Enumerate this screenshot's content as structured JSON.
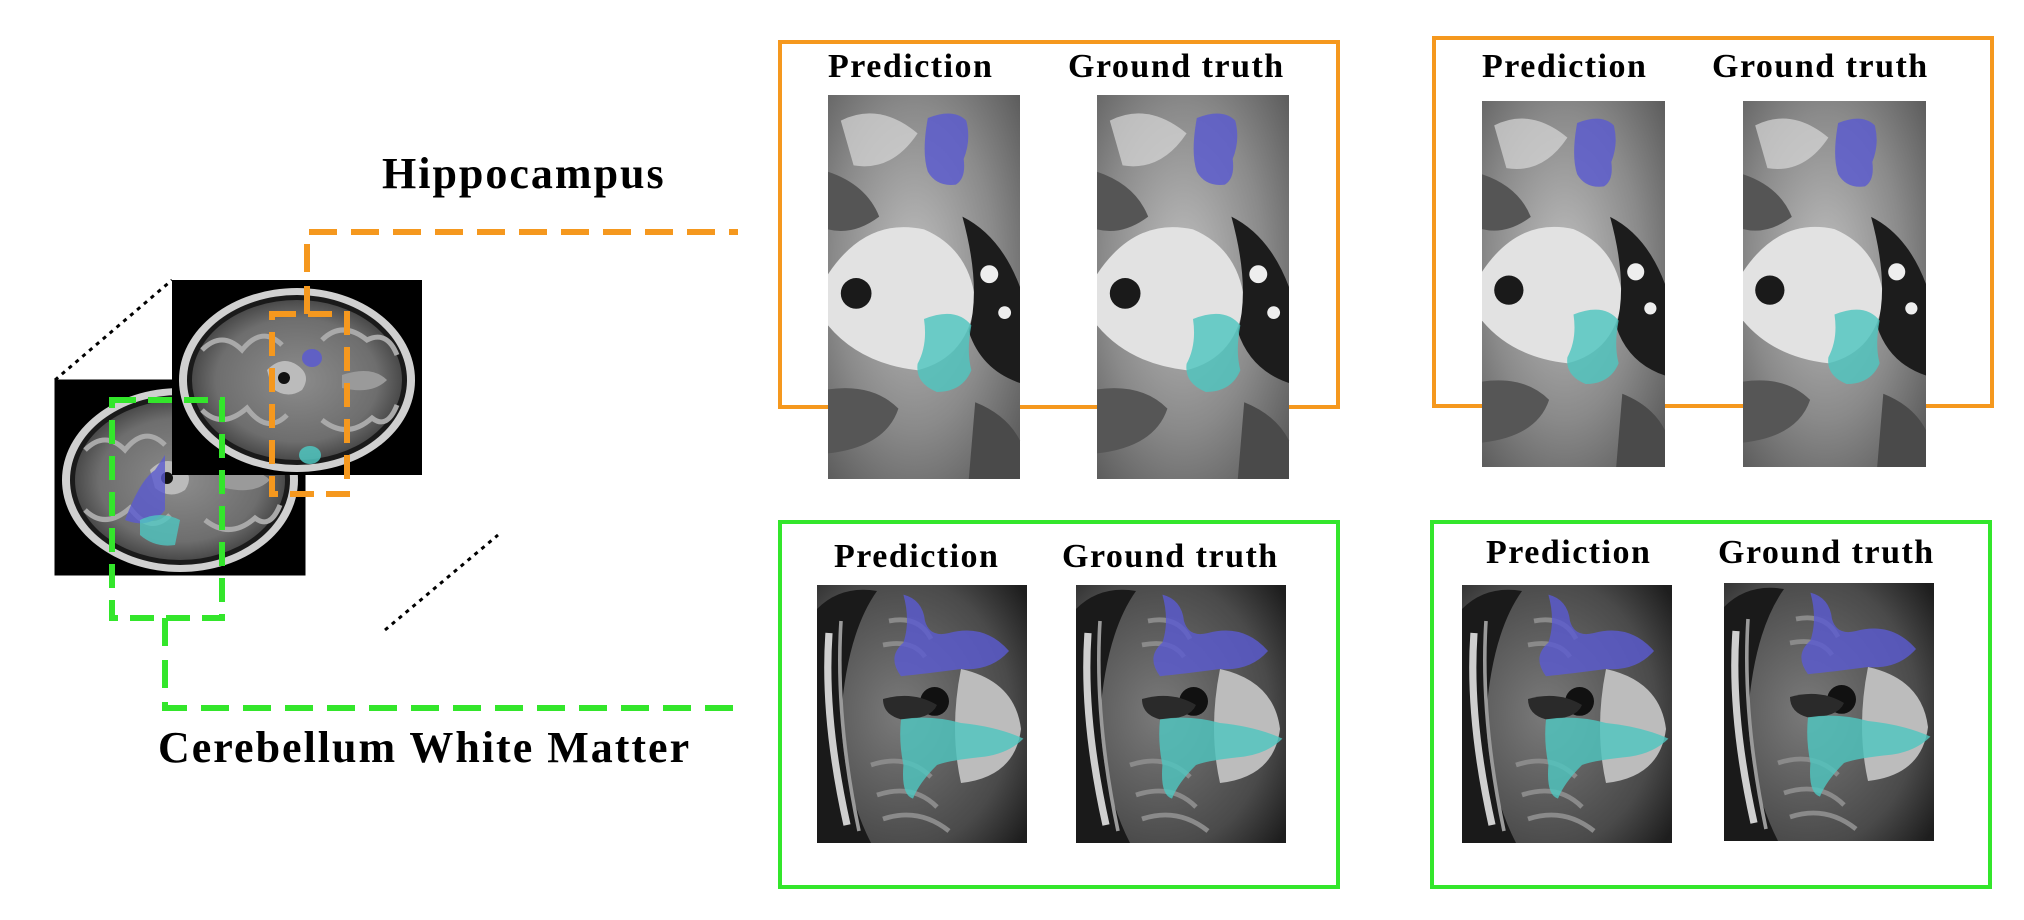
{
  "regions": {
    "hippocampus": "Hippocampus",
    "cerebellum": "Cerebellum White Matter"
  },
  "panel_headers": {
    "prediction": "Prediction",
    "ground_truth": "Ground truth"
  },
  "colors": {
    "hippocampus_frame": "#f5981e",
    "cerebellum_frame": "#33e62b",
    "label_blue": "#5a5ad0",
    "label_teal": "#4fc6c0"
  }
}
